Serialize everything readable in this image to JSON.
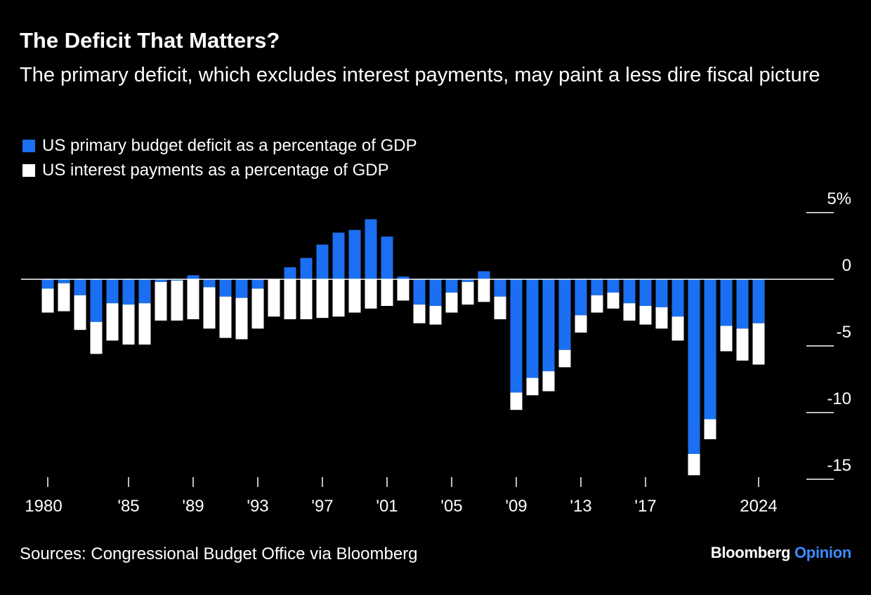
{
  "chart_data": {
    "type": "bar",
    "stacked": true,
    "title": "The Deficit That Matters?",
    "subtitle": "The primary deficit, which excludes interest payments, may paint a less dire fiscal picture",
    "legend_placement": "top-left",
    "grid": false,
    "ylim": [
      -15,
      5
    ],
    "yticks": [
      5,
      0,
      -5,
      -10,
      -15
    ],
    "ytick_labels": [
      "5%",
      "0",
      "-5",
      "-10",
      "-15"
    ],
    "y_axis_side": "right",
    "x": [
      1980,
      1981,
      1982,
      1983,
      1984,
      1985,
      1986,
      1987,
      1988,
      1989,
      1990,
      1991,
      1992,
      1993,
      1994,
      1995,
      1996,
      1997,
      1998,
      1999,
      2000,
      2001,
      2002,
      2003,
      2004,
      2005,
      2006,
      2007,
      2008,
      2009,
      2010,
      2011,
      2012,
      2013,
      2014,
      2015,
      2016,
      2017,
      2018,
      2019,
      2020,
      2021,
      2022,
      2023,
      2024
    ],
    "xticks": [
      1980,
      1985,
      1989,
      1993,
      1997,
      2001,
      2005,
      2009,
      2013,
      2017,
      2024
    ],
    "xtick_labels": [
      "1980",
      "'85",
      "'89",
      "'93",
      "'97",
      "'01",
      "'05",
      "'09",
      "'13",
      "'17",
      "2024"
    ],
    "series": [
      {
        "name": "US primary budget deficit as a percentage of GDP",
        "color": "#1a6ff2",
        "values": [
          -0.7,
          -0.3,
          -1.2,
          -3.2,
          -1.8,
          -1.9,
          -1.8,
          -0.2,
          -0.1,
          0.3,
          -0.6,
          -1.3,
          -1.4,
          -0.7,
          0.0,
          0.9,
          1.6,
          2.6,
          3.5,
          3.7,
          4.5,
          3.2,
          0.2,
          -1.9,
          -2.0,
          -1.0,
          -0.2,
          0.6,
          -1.3,
          -8.5,
          -7.4,
          -6.9,
          -5.3,
          -2.7,
          -1.2,
          -1.0,
          -1.8,
          -2.0,
          -2.1,
          -2.8,
          -13.1,
          -10.5,
          -3.5,
          -3.7,
          -3.3
        ]
      },
      {
        "name": "US interest payments as a percentage of GDP",
        "color": "#ffffff",
        "values": [
          -1.8,
          -2.1,
          -2.6,
          -2.4,
          -2.8,
          -3.0,
          -3.1,
          -2.9,
          -3.0,
          -3.0,
          -3.1,
          -3.1,
          -3.1,
          -3.0,
          -2.8,
          -3.0,
          -3.0,
          -2.9,
          -2.8,
          -2.5,
          -2.2,
          -2.0,
          -1.6,
          -1.4,
          -1.4,
          -1.5,
          -1.7,
          -1.7,
          -1.7,
          -1.3,
          -1.3,
          -1.5,
          -1.3,
          -1.3,
          -1.3,
          -1.2,
          -1.3,
          -1.4,
          -1.6,
          -1.8,
          -1.6,
          -1.5,
          -1.9,
          -2.4,
          -3.1
        ]
      }
    ]
  },
  "source": "Sources: Congressional Budget Office via Bloomberg",
  "brand": {
    "part1": "Bloomberg",
    "part2": "Opinion"
  }
}
